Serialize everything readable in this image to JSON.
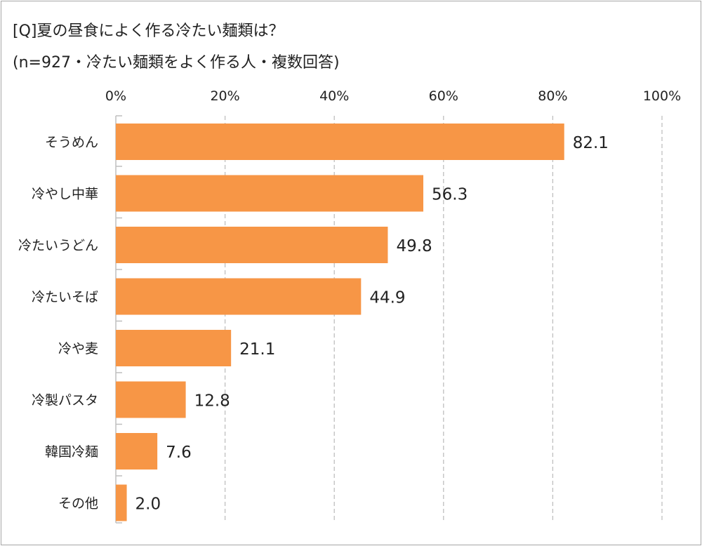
{
  "chart_data": {
    "type": "bar",
    "orientation": "horizontal",
    "title": "[Q]夏の昼食によく作る冷たい麺類は？",
    "subtitle": "(n=927・冷たい麺類をよく作る人・複数回答)",
    "categories": [
      "そうめん",
      "冷やし中華",
      "冷たいうどん",
      "冷たいそば",
      "冷や麦",
      "冷製パスタ",
      "韓国冷麺",
      "その他"
    ],
    "values": [
      82.1,
      56.3,
      49.8,
      44.9,
      21.1,
      12.8,
      7.6,
      2.0
    ],
    "value_labels": [
      "82.1",
      "56.3",
      "49.8",
      "44.9",
      "21.1",
      "12.8",
      "7.6",
      "2.0"
    ],
    "xlim": [
      0,
      100
    ],
    "x_ticks": [
      0,
      20,
      40,
      60,
      80,
      100
    ],
    "x_tick_labels": [
      "0%",
      "20%",
      "40%",
      "60%",
      "80%",
      "100%"
    ],
    "x_axis_position": "top",
    "grid": "vertical dashed",
    "bar_color": "#F79646",
    "grid_color": "#bfbfbf"
  }
}
